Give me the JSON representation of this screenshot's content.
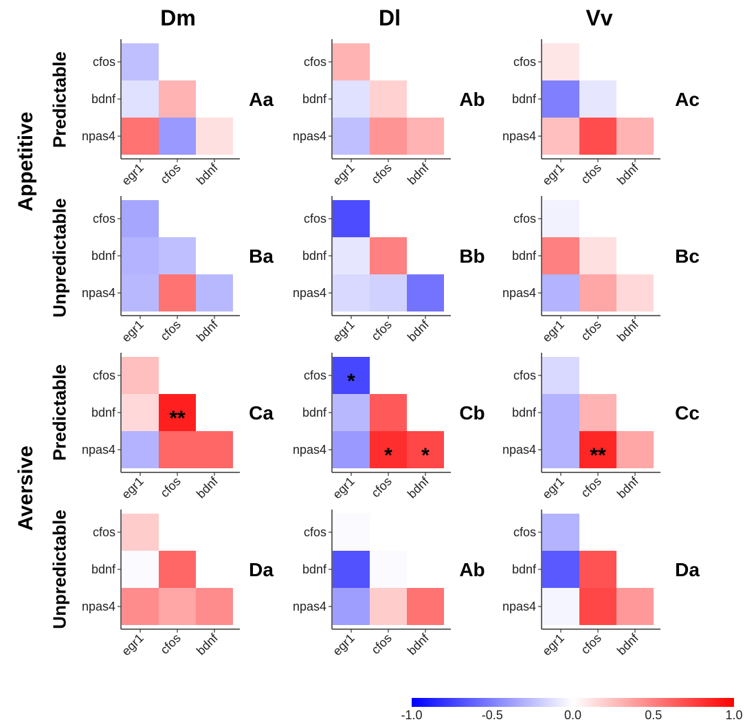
{
  "chart_data": {
    "type": "heatmap",
    "columns": [
      "Dm",
      "Dl",
      "Vv"
    ],
    "groups": [
      "Appetitive",
      "Aversive"
    ],
    "rows": [
      "Predictable",
      "Unpredictable",
      "Predictable",
      "Unpredictable"
    ],
    "x_tick_labels": [
      "egr1",
      "cfos",
      "bdnf"
    ],
    "y_tick_labels": [
      "cfos",
      "bdnf",
      "npas4"
    ],
    "color_scale": {
      "min": -1.0,
      "max": 1.0,
      "low_color": "#0000ff",
      "mid_color": "#ffffff",
      "high_color": "#ff0000",
      "ticks": [
        -1.0,
        -0.5,
        0.0,
        0.5,
        1.0
      ],
      "tick_labels": [
        "-1.0",
        "-0.5",
        "0.0",
        "0.5",
        "1.0"
      ]
    },
    "panels": [
      {
        "label": "Aa",
        "values": [
          [
            -0.25
          ],
          [
            -0.12,
            0.3
          ],
          [
            0.55,
            -0.4,
            0.12
          ]
        ],
        "stars": [
          [
            ""
          ],
          [
            "",
            ""
          ],
          [
            "",
            "",
            ""
          ]
        ]
      },
      {
        "label": "Ab",
        "values": [
          [
            0.3
          ],
          [
            -0.12,
            0.18
          ],
          [
            -0.25,
            0.42,
            0.3
          ]
        ],
        "stars": [
          [
            ""
          ],
          [
            "",
            ""
          ],
          [
            "",
            "",
            ""
          ]
        ]
      },
      {
        "label": "Ac",
        "values": [
          [
            0.1
          ],
          [
            -0.5,
            -0.1
          ],
          [
            0.25,
            0.7,
            0.3
          ]
        ],
        "stars": [
          [
            ""
          ],
          [
            "",
            ""
          ],
          [
            "",
            "",
            ""
          ]
        ]
      },
      {
        "label": "Ba",
        "values": [
          [
            -0.35
          ],
          [
            -0.3,
            -0.25
          ],
          [
            -0.28,
            0.55,
            -0.28
          ]
        ],
        "stars": [
          [
            ""
          ],
          [
            "",
            ""
          ],
          [
            "",
            "",
            ""
          ]
        ]
      },
      {
        "label": "Bb",
        "values": [
          [
            -0.7
          ],
          [
            -0.1,
            0.5
          ],
          [
            -0.15,
            -0.18,
            -0.55
          ]
        ],
        "stars": [
          [
            ""
          ],
          [
            "",
            ""
          ],
          [
            "",
            "",
            ""
          ]
        ]
      },
      {
        "label": "Bc",
        "values": [
          [
            -0.05
          ],
          [
            0.5,
            0.12
          ],
          [
            -0.3,
            0.35,
            0.15
          ]
        ],
        "stars": [
          [
            ""
          ],
          [
            "",
            ""
          ],
          [
            "",
            "",
            ""
          ]
        ]
      },
      {
        "label": "Ca",
        "values": [
          [
            0.25
          ],
          [
            0.15,
            0.88
          ],
          [
            -0.3,
            0.6,
            0.6
          ]
        ],
        "stars": [
          [
            ""
          ],
          [
            "",
            "**"
          ],
          [
            "",
            "",
            ""
          ]
        ]
      },
      {
        "label": "Cb",
        "values": [
          [
            -0.72
          ],
          [
            -0.28,
            0.65
          ],
          [
            -0.4,
            0.82,
            0.72
          ]
        ],
        "stars": [
          [
            "*"
          ],
          [
            "",
            ""
          ],
          [
            "",
            "*",
            "*"
          ]
        ]
      },
      {
        "label": "Cc",
        "values": [
          [
            -0.15
          ],
          [
            -0.3,
            0.3
          ],
          [
            -0.3,
            0.85,
            0.35
          ]
        ],
        "stars": [
          [
            ""
          ],
          [
            "",
            ""
          ],
          [
            "",
            "**",
            ""
          ]
        ]
      },
      {
        "label": "Da",
        "values": [
          [
            0.2
          ],
          [
            -0.02,
            0.6
          ],
          [
            0.45,
            0.35,
            0.45
          ]
        ],
        "stars": [
          [
            ""
          ],
          [
            "",
            ""
          ],
          [
            "",
            "",
            ""
          ]
        ]
      },
      {
        "label": "Ab",
        "values": [
          [
            -0.02
          ],
          [
            -0.68,
            -0.02
          ],
          [
            -0.38,
            0.2,
            0.55
          ]
        ],
        "stars": [
          [
            ""
          ],
          [
            "",
            ""
          ],
          [
            "",
            "",
            ""
          ]
        ]
      },
      {
        "label": "Da",
        "values": [
          [
            -0.3
          ],
          [
            -0.65,
            0.68
          ],
          [
            -0.04,
            0.72,
            0.4
          ]
        ],
        "stars": [
          [
            ""
          ],
          [
            "",
            ""
          ],
          [
            "",
            "",
            ""
          ]
        ]
      }
    ]
  }
}
